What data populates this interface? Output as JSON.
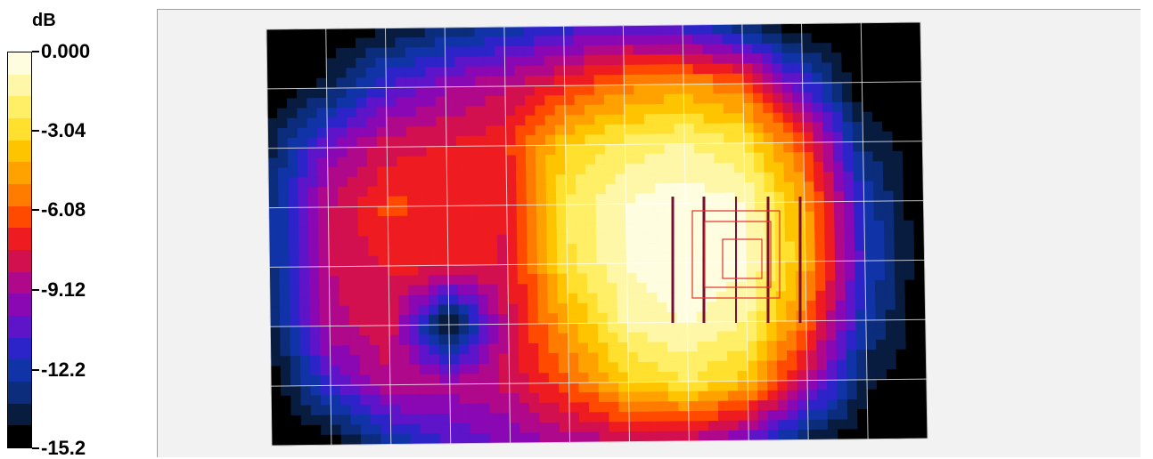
{
  "legend": {
    "unit": "dB",
    "labels": [
      "0.000",
      "-3.04",
      "-6.08",
      "-9.12",
      "-12.2",
      "-15.2"
    ],
    "levels": [
      0.0,
      -3.04,
      -6.08,
      -9.12,
      -12.2,
      -15.2
    ],
    "colors": [
      "#fffde0",
      "#fff7a8",
      "#ffef66",
      "#ffe02e",
      "#ffc400",
      "#ffa200",
      "#ff7c00",
      "#ff4a00",
      "#ee1c20",
      "#d21050",
      "#b0088a",
      "#8a08b4",
      "#5e14c8",
      "#2c24c8",
      "#1034a8",
      "#0c2c7c",
      "#081c40",
      "#000000"
    ]
  },
  "chart_data": {
    "type": "heatmap",
    "title": "",
    "xlabel": "",
    "ylabel": "",
    "unit": "dB",
    "zlim": [
      -15.2,
      0.0
    ],
    "grid": true,
    "x": [
      0,
      1,
      2,
      3,
      4,
      5,
      6,
      7,
      8,
      9,
      10,
      11
    ],
    "y": [
      0,
      1,
      2,
      3,
      4,
      5,
      6,
      7
    ],
    "z": [
      [
        -15.2,
        -15.2,
        -14.5,
        -13.5,
        -12.5,
        -11.5,
        -10.5,
        -11.5,
        -13.5,
        -15.2,
        -15.2,
        -15.2
      ],
      [
        -15.2,
        -14.0,
        -11.0,
        -9.5,
        -8.5,
        -7.0,
        -5.5,
        -4.8,
        -6.0,
        -11.0,
        -15.2,
        -15.2
      ],
      [
        -14.0,
        -10.0,
        -8.0,
        -7.5,
        -7.0,
        -3.5,
        -2.2,
        -1.6,
        -2.6,
        -6.5,
        -13.5,
        -15.2
      ],
      [
        -13.0,
        -8.5,
        -6.5,
        -7.0,
        -7.5,
        -2.5,
        -0.8,
        -0.3,
        -0.8,
        -4.5,
        -12.0,
        -15.2
      ],
      [
        -13.0,
        -8.5,
        -7.5,
        -7.0,
        -7.8,
        -2.8,
        -0.8,
        -0.2,
        -0.6,
        -4.2,
        -11.5,
        -15.2
      ],
      [
        -14.0,
        -8.8,
        -7.8,
        -15.2,
        -8.0,
        -4.5,
        -1.5,
        -0.7,
        -1.6,
        -5.8,
        -12.5,
        -15.2
      ],
      [
        -15.2,
        -11.0,
        -8.5,
        -9.0,
        -8.2,
        -6.0,
        -3.5,
        -2.5,
        -3.8,
        -8.5,
        -14.0,
        -15.2
      ],
      [
        -15.2,
        -15.2,
        -12.5,
        -11.0,
        -10.0,
        -9.0,
        -8.5,
        -8.5,
        -10.5,
        -14.0,
        -15.2,
        -15.2
      ]
    ]
  },
  "overlay": {
    "stroke_color": "#7a1030",
    "rect_color": "#e23030"
  }
}
